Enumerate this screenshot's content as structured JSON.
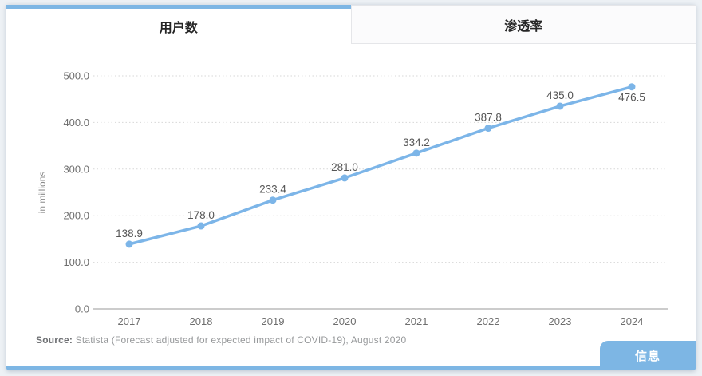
{
  "colors": {
    "accent_blue": "#7db6e4",
    "line_blue": "#7cb5e8",
    "page_background": "#edf1f5",
    "inactive_tab_background": "#fbfbfc"
  },
  "tabs": [
    {
      "label": "用户数",
      "active": true
    },
    {
      "label": "渗透率",
      "active": false
    }
  ],
  "source": {
    "prefix": "Source:",
    "text": " Statista (Forecast adjusted for expected impact of COVID-19), August 2020"
  },
  "info_button": {
    "label": "信息"
  },
  "chart_data": {
    "type": "line",
    "title": "",
    "categories": [
      "2017",
      "2018",
      "2019",
      "2020",
      "2021",
      "2022",
      "2023",
      "2024"
    ],
    "values": [
      138.9,
      178.0,
      233.4,
      281.0,
      334.2,
      387.8,
      435.0,
      476.5
    ],
    "value_labels": [
      "138.9",
      "178.0",
      "233.4",
      "281.0",
      "334.2",
      "387.8",
      "435.0",
      "476.5"
    ],
    "xlabel": "",
    "ylabel": "in millions",
    "ylim": [
      0,
      500
    ],
    "ytick_step": 100,
    "ytick_labels": [
      "0.0",
      "100.0",
      "200.0",
      "300.0",
      "400.0",
      "500.0"
    ],
    "grid": "horizontal dotted",
    "legend": "none",
    "line_color": "#7cb5e8"
  }
}
